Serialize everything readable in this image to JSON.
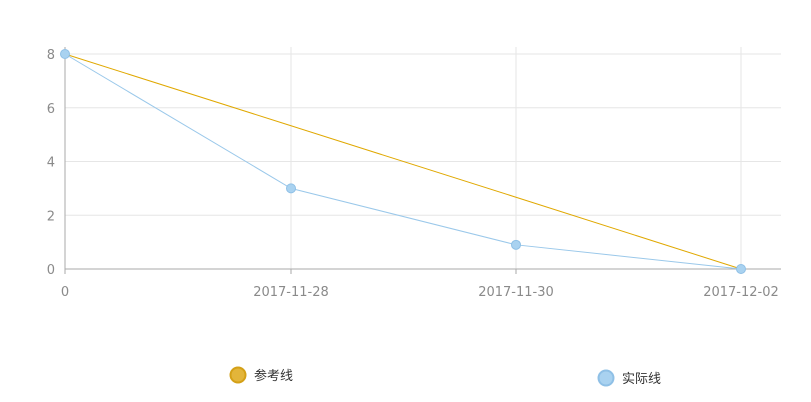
{
  "chart_data": {
    "type": "line",
    "x": [
      "0",
      "2017-11-28",
      "2017-11-30",
      "2017-12-02"
    ],
    "ylim": [
      0,
      8
    ],
    "yticks": [
      0,
      2,
      4,
      6,
      8
    ],
    "grid": true,
    "legend_position": "bottom",
    "series": [
      {
        "name": "参考线",
        "values": [
          8,
          5.33,
          2.67,
          0
        ],
        "color": "#e0a800",
        "markers": "none"
      },
      {
        "name": "实际线",
        "values": [
          8,
          3,
          0.9,
          0
        ],
        "color": "#9ac8ea",
        "markers": "circle"
      }
    ],
    "title": "",
    "xlabel": "",
    "ylabel": ""
  }
}
